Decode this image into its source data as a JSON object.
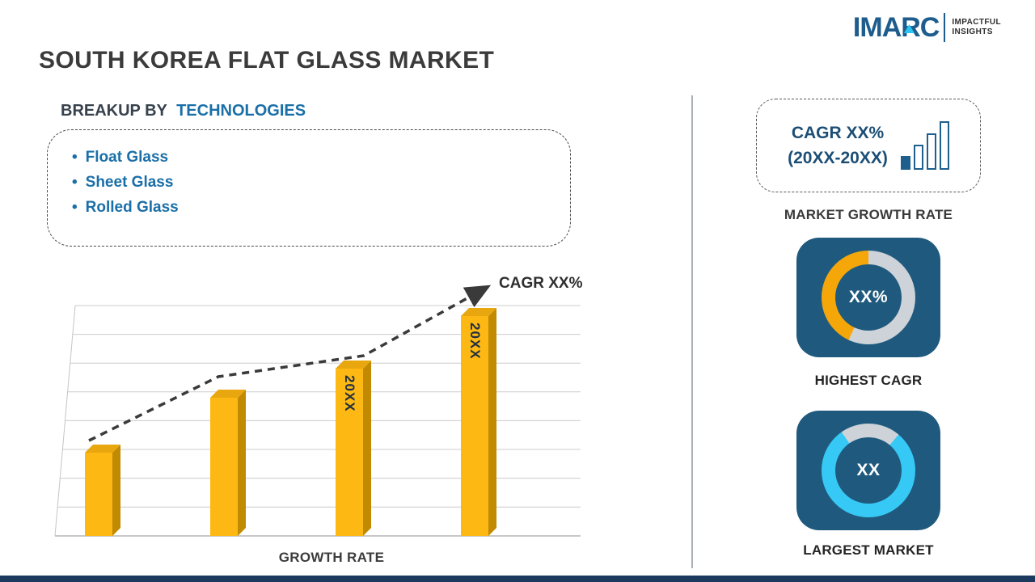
{
  "logo": {
    "brand": "IMARC",
    "tagline_line1": "IMPACTFUL",
    "tagline_line2": "INSIGHTS"
  },
  "title": "SOUTH KOREA FLAT GLASS MARKET",
  "breakup": {
    "heading_prefix": "BREAKUP BY",
    "heading_highlight": "TECHNOLOGIES",
    "items": [
      "Float Glass",
      "Sheet Glass",
      "Rolled Glass"
    ]
  },
  "chart_data": {
    "type": "bar",
    "title": "GROWTH RATE",
    "categories": [
      "",
      "",
      "20XX",
      "20XX"
    ],
    "values": [
      38,
      63,
      76,
      100
    ],
    "bar_labels": [
      "",
      "",
      "20XX",
      "20XX"
    ],
    "trend_label": "CAGR XX%",
    "xlabel": "GROWTH RATE",
    "ylabel": "",
    "ylim": [
      0,
      100
    ],
    "grid": true,
    "legend": "none",
    "bar_color": "#FDB813",
    "trend_style": "dashed-arrow"
  },
  "right_panel": {
    "growth_box": {
      "line1": "CAGR XX%",
      "line2": "(20XX-20XX)"
    },
    "market_growth_label": "MARKET GROWTH RATE",
    "highest_cagr": {
      "value": "XX%",
      "label": "HIGHEST CAGR",
      "donut": {
        "color": "#F5A70A",
        "track_color": "#CDD3D8",
        "start_deg": 205,
        "sweep_deg": 155
      }
    },
    "largest_market": {
      "value": "XX",
      "label": "LARGEST MARKET",
      "donut": {
        "color": "#36C9F6",
        "track_color": "#CDD3D8",
        "start_deg": 40,
        "sweep_deg": 285
      }
    }
  },
  "colors": {
    "accent_blue": "#1A6FA8",
    "navy_bottom_bar": "#1B3A5E",
    "card_bg": "#1F5A7E",
    "bar_gold": "#FDB813",
    "logo_blue": "#1D5C8C",
    "logo_cyan": "#2BC4F3"
  }
}
